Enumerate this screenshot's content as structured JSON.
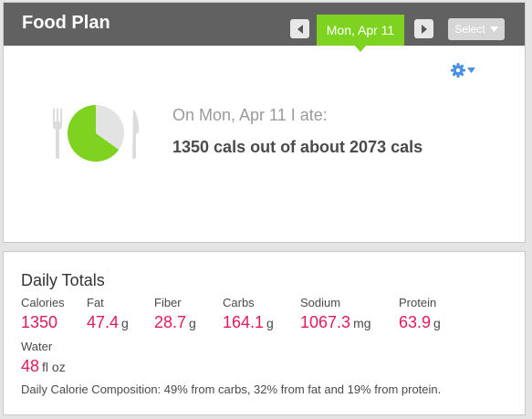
{
  "header": {
    "title": "Food Plan",
    "date": "Mon, Apr 11",
    "select_label": "Select"
  },
  "summary": {
    "intro": "On Mon, Apr 11 I ate:",
    "calories_line": "1350 cals out of about 2073 cals",
    "eaten_fraction": 0.651
  },
  "daily_totals": {
    "title": "Daily Totals",
    "nutrients": [
      {
        "label": "Calories",
        "value": "1350",
        "unit": ""
      },
      {
        "label": "Fat",
        "value": "47.4",
        "unit": "g"
      },
      {
        "label": "Fiber",
        "value": "28.7",
        "unit": "g"
      },
      {
        "label": "Carbs",
        "value": "164.1",
        "unit": "g"
      },
      {
        "label": "Sodium",
        "value": "1067.3",
        "unit": "mg"
      },
      {
        "label": "Protein",
        "value": "63.9",
        "unit": "g"
      },
      {
        "label": "Water",
        "value": "48",
        "unit": "fl oz"
      }
    ],
    "composition": "Daily Calorie Composition: 49% from carbs, 32% from fat and 19% from protein."
  },
  "colors": {
    "accent_green": "#7ed321",
    "value_pink": "#e0195e",
    "header_gray": "#616161",
    "gear_blue": "#4a90e2"
  },
  "icons": [
    "chevron-left-icon",
    "chevron-right-icon",
    "caret-down-icon",
    "gear-icon",
    "fork-icon",
    "knife-icon",
    "plate-icon"
  ]
}
